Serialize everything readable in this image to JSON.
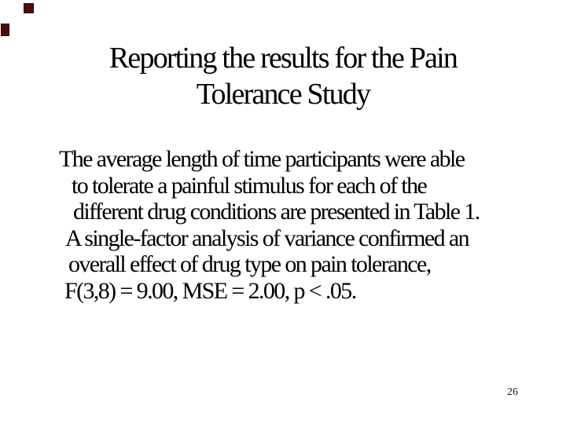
{
  "slide": {
    "title": {
      "line1": "Reporting the results for the Pain",
      "line2": "Tolerance Study"
    },
    "body": {
      "lines": [
        "The average length of time participants were able",
        "to tolerate a painful stimulus for each of the",
        "different drug conditions are presented in Table 1.",
        "A single-factor analysis of variance confirmed an",
        "overall effect of drug type on pain tolerance,",
        "F(3,8) = 9.00, MSE = 2.00, p < .05."
      ]
    },
    "page_number": "26",
    "decorations": {
      "square_color": "#4a0e0e",
      "square_border_color": "#2e0707"
    },
    "colors": {
      "background": "#ffffff",
      "text": "#000000"
    }
  }
}
